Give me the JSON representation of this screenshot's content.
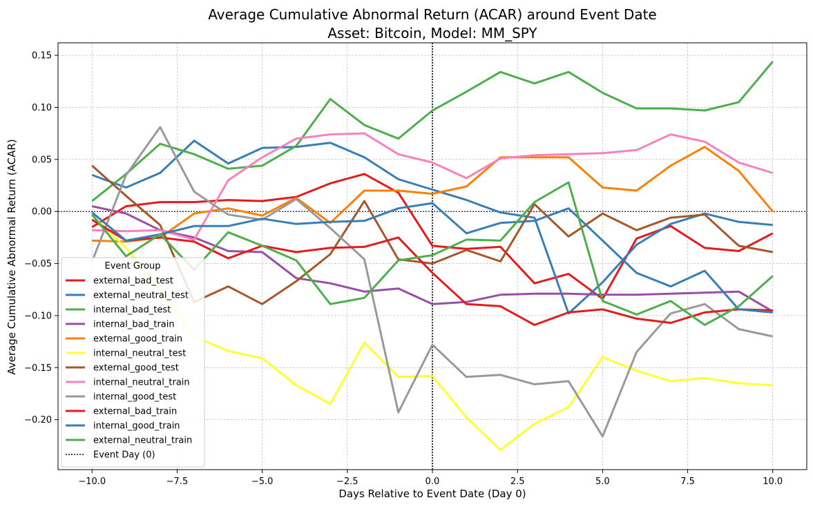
{
  "chart_data": {
    "type": "line",
    "title": "Average Cumulative Abnormal Return (ACAR) around Event Date",
    "subtitle": "Asset: Bitcoin, Model: MM_SPY",
    "xlabel": "Days Relative to Event Date (Day 0)",
    "ylabel": "Average Cumulative Abnormal Return (ACAR)",
    "xlim": [
      -11,
      11
    ],
    "ylim": [
      -0.248,
      0.162
    ],
    "xticks": [
      -10,
      -7.5,
      -5,
      -2.5,
      0,
      2.5,
      5,
      7.5,
      10
    ],
    "xtick_labels": [
      "−10.0",
      "−7.5",
      "−5.0",
      "−2.5",
      "0.0",
      "2.5",
      "5.0",
      "7.5",
      "10.0"
    ],
    "yticks": [
      -0.2,
      -0.15,
      -0.1,
      -0.05,
      0,
      0.05,
      0.1,
      0.15
    ],
    "ytick_labels": [
      "−0.20",
      "−0.15",
      "−0.10",
      "−0.05",
      "0.00",
      "0.05",
      "0.10",
      "0.15"
    ],
    "grid": true,
    "legend_title": "Event Group",
    "legend_position": "lower-left",
    "x": [
      -10,
      -9,
      -8,
      -7,
      -6,
      -5,
      -4,
      -3,
      -2,
      -1,
      0,
      1,
      2,
      3,
      4,
      5,
      6,
      7,
      8,
      9,
      10
    ],
    "series": [
      {
        "name": "external_bad_test",
        "color": "#e41a1c",
        "values": [
          -0.015,
          0.005,
          0.009,
          0.009,
          0.011,
          0.01,
          0.014,
          0.027,
          0.036,
          0.018,
          -0.033,
          -0.036,
          -0.034,
          -0.069,
          -0.06,
          -0.084,
          -0.026,
          -0.014,
          -0.035,
          -0.038,
          -0.021
        ]
      },
      {
        "name": "external_neutral_test",
        "color": "#377eb8",
        "values": [
          0.035,
          0.023,
          0.037,
          0.068,
          0.046,
          0.061,
          0.062,
          0.066,
          0.052,
          0.031,
          0.021,
          0.011,
          -0.001,
          -0.006,
          -0.098,
          -0.068,
          -0.032,
          -0.012,
          -0.002,
          -0.01,
          -0.013
        ]
      },
      {
        "name": "internal_bad_test",
        "color": "#4daf4a",
        "values": [
          0.01,
          0.036,
          0.065,
          0.055,
          0.041,
          0.044,
          0.063,
          0.108,
          0.083,
          0.07,
          0.097,
          0.115,
          0.134,
          0.123,
          0.134,
          0.114,
          0.099,
          0.099,
          0.097,
          0.105,
          0.144
        ]
      },
      {
        "name": "internal_bad_train",
        "color": "#984ea3",
        "values": [
          0.005,
          -0.002,
          -0.018,
          -0.025,
          -0.038,
          -0.039,
          -0.064,
          -0.069,
          -0.077,
          -0.074,
          -0.089,
          -0.087,
          -0.08,
          -0.079,
          -0.079,
          -0.08,
          -0.08,
          -0.079,
          -0.078,
          -0.077,
          -0.096
        ]
      },
      {
        "name": "external_good_train",
        "color": "#ff7f00",
        "values": [
          -0.028,
          -0.029,
          -0.025,
          -0.002,
          0.003,
          -0.004,
          0.013,
          -0.011,
          0.02,
          0.02,
          0.017,
          0.024,
          0.052,
          0.052,
          0.052,
          0.023,
          0.02,
          0.044,
          0.062,
          0.039,
          0.0
        ]
      },
      {
        "name": "internal_neutral_test",
        "color": "#ffff33",
        "values": [
          -0.004,
          -0.035,
          -0.077,
          -0.12,
          -0.134,
          -0.141,
          -0.167,
          -0.185,
          -0.126,
          -0.159,
          -0.158,
          -0.198,
          -0.229,
          -0.204,
          -0.188,
          -0.14,
          -0.153,
          -0.163,
          -0.16,
          -0.165,
          -0.167
        ]
      },
      {
        "name": "external_good_test",
        "color": "#a65628",
        "values": [
          0.044,
          0.015,
          -0.013,
          -0.087,
          -0.072,
          -0.089,
          -0.067,
          -0.041,
          0.01,
          -0.046,
          -0.05,
          -0.037,
          -0.048,
          0.007,
          -0.024,
          -0.002,
          -0.018,
          -0.006,
          -0.003,
          -0.033,
          -0.039
        ]
      },
      {
        "name": "internal_neutral_train",
        "color": "#f781bf",
        "values": [
          -0.018,
          -0.019,
          -0.018,
          -0.027,
          0.03,
          0.052,
          0.07,
          0.074,
          0.075,
          0.055,
          0.047,
          0.032,
          0.051,
          0.054,
          0.055,
          0.056,
          0.059,
          0.074,
          0.067,
          0.047,
          0.037
        ]
      },
      {
        "name": "internal_good_test",
        "color": "#999999",
        "values": [
          -0.048,
          0.035,
          0.081,
          0.019,
          -0.003,
          -0.008,
          0.012,
          -0.016,
          -0.046,
          -0.193,
          -0.128,
          -0.159,
          -0.157,
          -0.166,
          -0.163,
          -0.216,
          -0.135,
          -0.098,
          -0.089,
          -0.113,
          -0.12
        ]
      },
      {
        "name": "external_bad_train",
        "color": "#e41a1c",
        "values": [
          -0.008,
          -0.028,
          -0.025,
          -0.029,
          -0.045,
          -0.033,
          -0.039,
          -0.035,
          -0.034,
          -0.025,
          -0.059,
          -0.089,
          -0.091,
          -0.109,
          -0.097,
          -0.094,
          -0.103,
          -0.107,
          -0.097,
          -0.094,
          -0.095
        ]
      },
      {
        "name": "internal_good_train",
        "color": "#377eb8",
        "values": [
          -0.001,
          -0.028,
          -0.022,
          -0.014,
          -0.014,
          -0.007,
          -0.012,
          -0.01,
          -0.009,
          0.003,
          0.008,
          -0.021,
          -0.011,
          -0.009,
          0.003,
          -0.028,
          -0.059,
          -0.072,
          -0.057,
          -0.094,
          -0.097
        ]
      },
      {
        "name": "external_neutral_train",
        "color": "#4daf4a",
        "values": [
          -0.003,
          -0.043,
          -0.022,
          -0.056,
          -0.02,
          -0.033,
          -0.047,
          -0.089,
          -0.083,
          -0.047,
          -0.042,
          -0.027,
          -0.028,
          0.009,
          0.028,
          -0.086,
          -0.099,
          -0.086,
          -0.109,
          -0.091,
          -0.062
        ]
      }
    ],
    "reference_lines": [
      {
        "name": "Event Day (0)",
        "orientation": "vertical",
        "value": 0,
        "style": "dotted",
        "color": "#000000",
        "in_legend": true
      },
      {
        "orientation": "horizontal",
        "value": 0,
        "style": "dotted",
        "color": "#000000",
        "in_legend": false
      }
    ]
  }
}
